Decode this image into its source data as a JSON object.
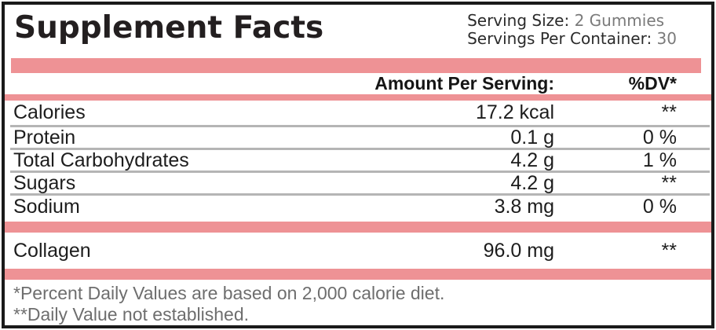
{
  "colors": {
    "pink_bar": "#EE9295",
    "dark_text": "#231F20",
    "muted_text": "#7A7A7A",
    "footnote_text": "#6E6E6E",
    "separator": "#B5B5B5",
    "border": "#1A1A1A"
  },
  "header": {
    "title": "Supplement Facts",
    "serving_size_label": "Serving Size:",
    "serving_size_value": "2 Gummies",
    "servings_per_container_label": "Servings Per Container:",
    "servings_per_container_value": "30"
  },
  "table": {
    "amount_header": "Amount Per Serving:",
    "dv_header": "%DV*",
    "rows": [
      {
        "name": "Calories",
        "amount": "17.2 kcal",
        "dv": "**"
      },
      {
        "name": "Protein",
        "amount": "0.1 g",
        "dv": "0 %"
      },
      {
        "name": "Total Carbohydrates",
        "amount": "4.2 g",
        "dv": "1 %"
      },
      {
        "name": "Sugars",
        "amount": "4.2 g",
        "dv": "**"
      },
      {
        "name": "Sodium",
        "amount": "3.8 mg",
        "dv": "0 %"
      }
    ],
    "extra_rows": [
      {
        "name": "Collagen",
        "amount": "96.0 mg",
        "dv": "**"
      }
    ]
  },
  "footnotes": [
    "*Percent Daily Values are based on 2,000 calorie diet.",
    "**Daily Value not established."
  ]
}
